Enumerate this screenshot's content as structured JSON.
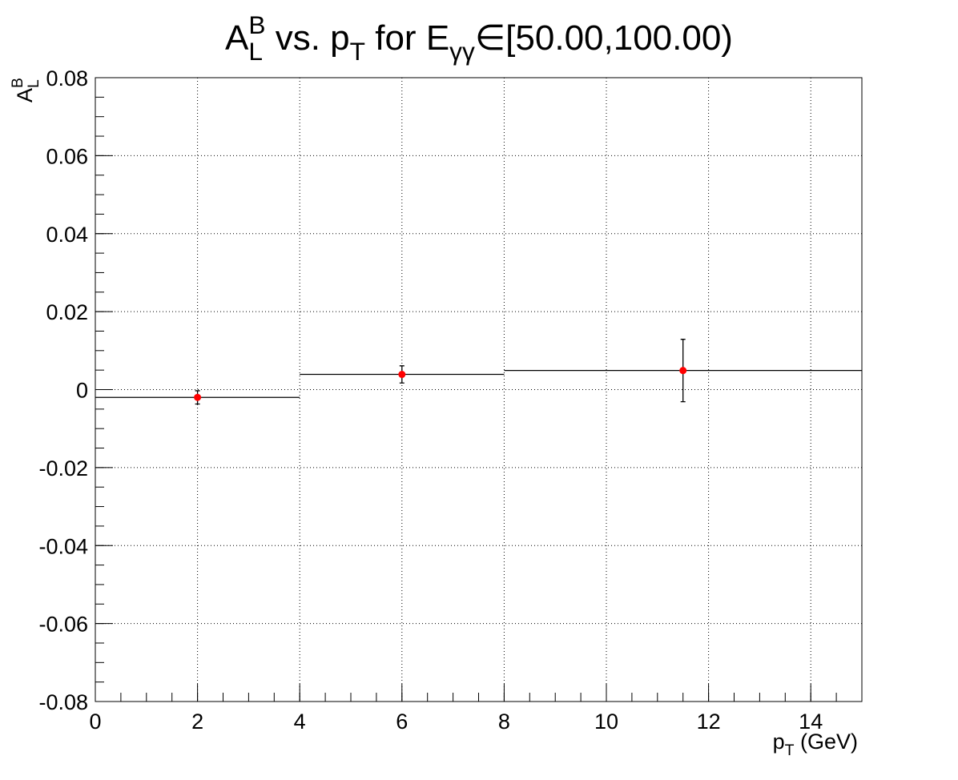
{
  "chart_data": {
    "type": "errorbar",
    "title": [
      {
        "text": "A"
      },
      {
        "text": "L",
        "shift": "sub"
      },
      {
        "text": "B",
        "shift": "sup"
      },
      {
        "text": " vs. p"
      },
      {
        "text": "T",
        "shift": "sub"
      },
      {
        "text": " for E"
      },
      {
        "text": "γγ",
        "shift": "sub"
      },
      {
        "text": "∈[50.00,100.00)"
      }
    ],
    "x_label": [
      {
        "text": "p"
      },
      {
        "text": "T",
        "shift": "sub"
      },
      {
        "text": " (GeV)"
      }
    ],
    "y_label": [
      {
        "text": "A"
      },
      {
        "text": "L",
        "shift": "sub"
      },
      {
        "text": "B",
        "shift": "sup"
      }
    ],
    "series": [
      {
        "color": "#ff0000",
        "line_color": "#000000",
        "x": [
          2,
          6,
          11.5
        ],
        "xerr": [
          2,
          2,
          3.5
        ],
        "values": [
          -0.002,
          0.0039,
          0.0049
        ],
        "yerr": [
          0.0017,
          0.0022,
          0.008
        ]
      }
    ],
    "xlim": [
      0,
      15
    ],
    "xticks": [
      0,
      2,
      4,
      6,
      8,
      10,
      12,
      14
    ],
    "ylim": [
      -0.08,
      0.08
    ],
    "yticks": [
      -0.08,
      -0.06,
      -0.04,
      -0.02,
      0,
      0.02,
      0.04,
      0.06,
      0.08
    ],
    "grid": true
  }
}
